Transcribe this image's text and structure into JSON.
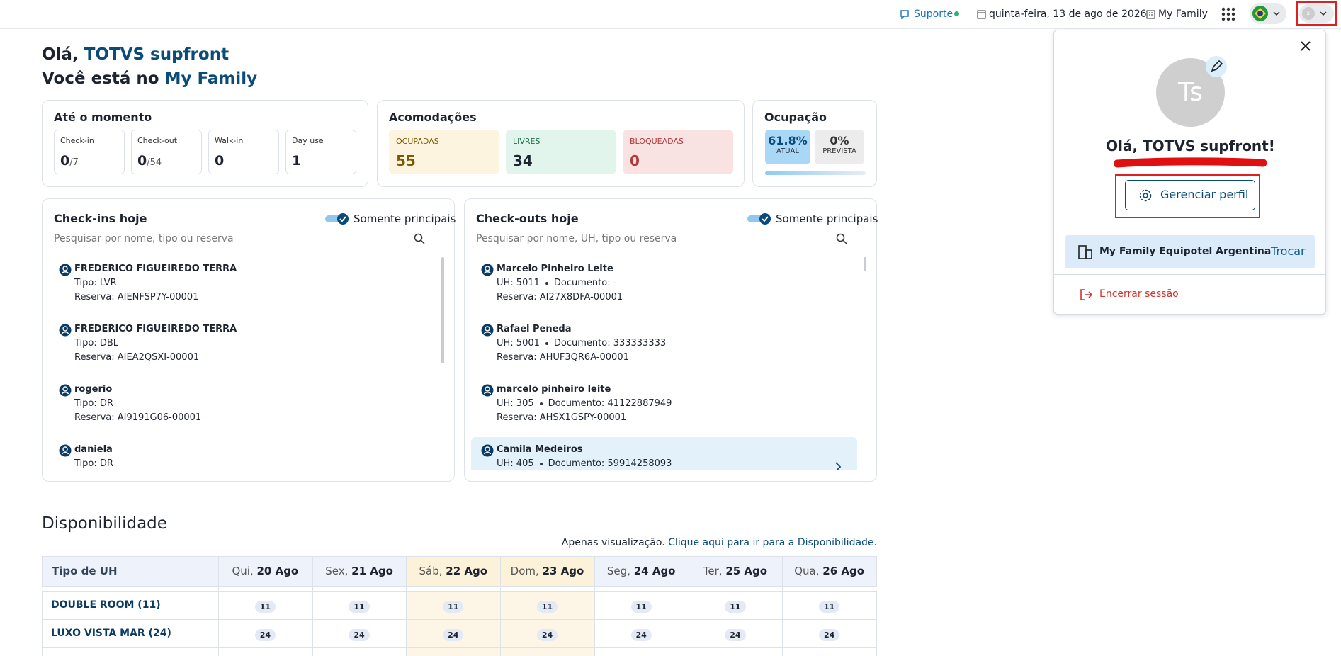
{
  "topbar": {
    "support": "Suporte",
    "date": "quinta-feira, 13 de ago de 2026",
    "property": "My Family",
    "avatar": "Ts"
  },
  "greeting": {
    "hello": "Olá,",
    "user": "TOTVS supfront",
    "line2": "Você está no",
    "property": "My Family"
  },
  "summary": {
    "title": "Até o momento",
    "items": [
      {
        "label": "Check-in",
        "value": 0,
        "total": "/7"
      },
      {
        "label": "Check-out",
        "value": 0,
        "total": "/54"
      },
      {
        "label": "Walk-in",
        "value": 0
      },
      {
        "label": "Day use",
        "value": 1
      }
    ]
  },
  "rooms": {
    "title": "Acomodações",
    "items": [
      {
        "label": "OCUPADAS",
        "value": 55
      },
      {
        "label": "LIVRES",
        "value": 34
      },
      {
        "label": "BLOQUEADAS",
        "value": 0
      }
    ]
  },
  "occupancy": {
    "title": "Ocupação",
    "items": [
      {
        "value": "61.8%",
        "label": "ATUAL"
      },
      {
        "value": "0%",
        "label": "PREVISTA"
      }
    ]
  },
  "checkins": {
    "title": "Check-ins hoje",
    "toggle": "Somente principais",
    "search": "Pesquisar por nome, tipo ou reserva",
    "guests": [
      {
        "name": "FREDERICO FIGUEIREDO TERRA",
        "lines": [
          "Tipo: LVR",
          "Reserva: AIENFSP7Y-00001"
        ]
      },
      {
        "name": "FREDERICO FIGUEIREDO TERRA",
        "lines": [
          "Tipo: DBL",
          "Reserva: AIEA2QSXI-00001"
        ]
      },
      {
        "name": "rogerio",
        "lines": [
          "Tipo: DR",
          "Reserva: AI9191G06-00001"
        ]
      },
      {
        "name": "daniela",
        "lines": [
          "Tipo: DR"
        ]
      }
    ]
  },
  "checkouts": {
    "title": "Check-outs hoje",
    "toggle": "Somente principais",
    "search": "Pesquisar por nome, UH, tipo ou reserva",
    "guests": [
      {
        "name": "Marcelo Pinheiro Leite",
        "uh": "UH: 5011",
        "doc": "Documento: -",
        "reservation": "Reserva: AI27X8DFA-00001"
      },
      {
        "name": "Rafael Peneda",
        "uh": "UH: 5001",
        "doc": "Documento: 333333333",
        "reservation": "Reserva: AHUF3QR6A-00001"
      },
      {
        "name": "marcelo pinheiro leite",
        "uh": "UH: 305",
        "doc": "Documento: 41122887949",
        "reservation": "Reserva: AHSX1GSPY-00001"
      },
      {
        "name": "Camila Medeiros",
        "uh": "UH: 405",
        "doc": "Documento: 59914258093"
      }
    ]
  },
  "availability": {
    "title": "Disponibilidade",
    "note": "Apenas visualização.",
    "link": "Clique aqui para ir para a Disponibilidade.",
    "header": "Tipo de UH",
    "days": [
      {
        "dow": "Qui,",
        "date": "20 Ago",
        "weekend": false
      },
      {
        "dow": "Sex,",
        "date": "21 Ago",
        "weekend": false
      },
      {
        "dow": "Sáb,",
        "date": "22 Ago",
        "weekend": true
      },
      {
        "dow": "Dom,",
        "date": "23 Ago",
        "weekend": true
      },
      {
        "dow": "Seg,",
        "date": "24 Ago",
        "weekend": false
      },
      {
        "dow": "Ter,",
        "date": "25 Ago",
        "weekend": false
      },
      {
        "dow": "Qua,",
        "date": "26 Ago",
        "weekend": false
      }
    ],
    "rows": [
      {
        "name": "DOUBLE ROOM (11)",
        "values": [
          11,
          11,
          11,
          11,
          11,
          11,
          11
        ]
      },
      {
        "name": "LUXO VISTA MAR (24)",
        "values": [
          24,
          24,
          24,
          24,
          24,
          24,
          24
        ]
      }
    ]
  },
  "profile": {
    "avatar": "Ts",
    "greeting": "Olá, TOTVS supfront!",
    "manage": "Gerenciar perfil",
    "company": "My Family Equipotel Argentina",
    "switch": "Trocar",
    "logout": "Encerrar sessão"
  }
}
